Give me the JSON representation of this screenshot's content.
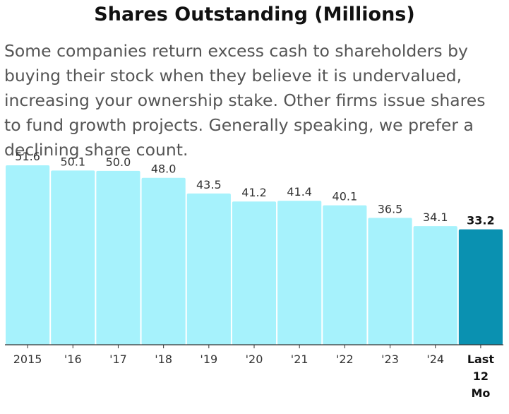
{
  "chart_data": {
    "type": "bar",
    "title": "Shares Outstanding (Millions)",
    "subtitle": "Some companies return excess cash to shareholders by buying their stock when they believe it is undervalued, increasing your ownership stake. Other firms issue shares to fund growth projects. Generally speaking, we prefer a declining share count.",
    "categories": [
      "2015",
      "'16",
      "'17",
      "'18",
      "'19",
      "'20",
      "'21",
      "'22",
      "'23",
      "'24",
      "Last 12 Mo"
    ],
    "category_lines": [
      [
        "2015"
      ],
      [
        "'16"
      ],
      [
        "'17"
      ],
      [
        "'18"
      ],
      [
        "'19"
      ],
      [
        "'20"
      ],
      [
        "'21"
      ],
      [
        "'22"
      ],
      [
        "'23"
      ],
      [
        "'24"
      ],
      [
        "Last",
        "12",
        "Mo"
      ]
    ],
    "values": [
      51.6,
      50.1,
      50.0,
      48.0,
      43.5,
      41.2,
      41.4,
      40.1,
      36.5,
      34.1,
      33.2
    ],
    "value_labels": [
      "51.6",
      "50.1",
      "50.0",
      "48.0",
      "43.5",
      "41.2",
      "41.4",
      "40.1",
      "36.5",
      "34.1",
      "33.2"
    ],
    "highlight_index": 10,
    "xlabel": "",
    "ylabel": "",
    "ylim": [
      0,
      51.6
    ],
    "grid": false,
    "colors": {
      "bar": "#a6f2fc",
      "highlight": "#0a91b1",
      "axis": "#333333"
    }
  }
}
